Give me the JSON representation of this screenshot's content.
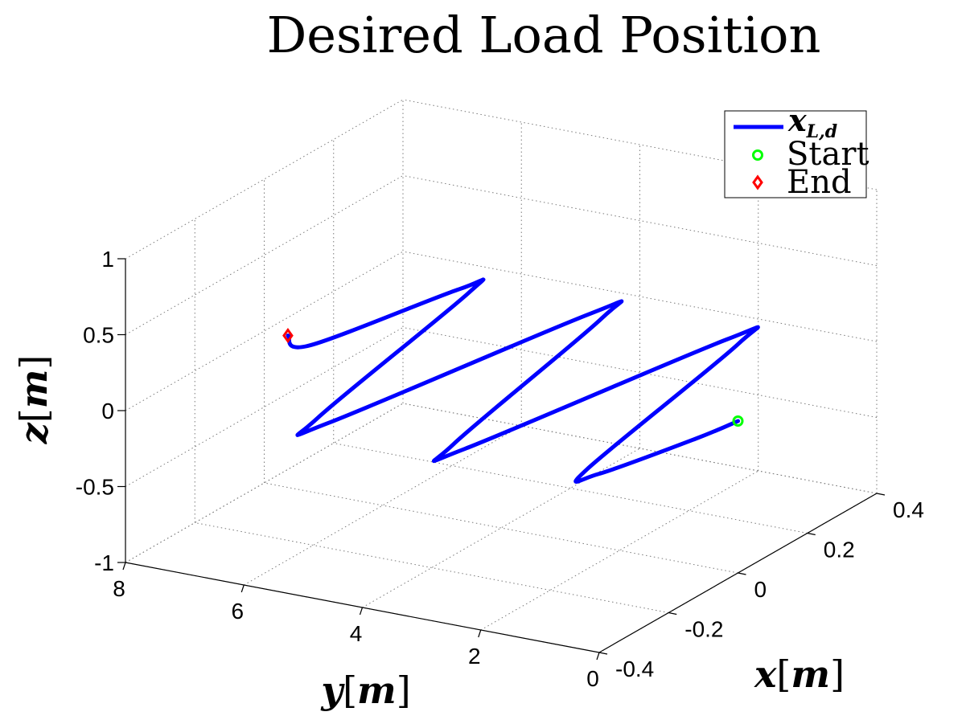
{
  "chart_data": {
    "type": "line",
    "title": "Desired Load Position",
    "axes": {
      "x": {
        "label": "x",
        "unit": "m",
        "lim": [
          -0.4,
          0.4
        ],
        "ticks": [
          -0.4,
          -0.2,
          0,
          0.2,
          0.4
        ],
        "tick_labels": [
          "-0.4",
          "-0.2",
          "0",
          "0.2",
          "0.4"
        ]
      },
      "y": {
        "label": "y",
        "unit": "m",
        "lim": [
          0,
          8
        ],
        "ticks": [
          0,
          2,
          4,
          6,
          8
        ],
        "tick_labels": [
          "0",
          "2",
          "4",
          "6",
          "8"
        ]
      },
      "z": {
        "label": "z",
        "unit": "m",
        "lim": [
          -1,
          1
        ],
        "ticks": [
          -1,
          -0.5,
          0,
          0.5,
          1
        ],
        "tick_labels": [
          "-1",
          "-0.5",
          "0",
          "0.5",
          "1"
        ]
      }
    },
    "grid": true,
    "legend_position": "top-right",
    "series": [
      {
        "name": "x_{L,d}",
        "color": "#0000ff",
        "x": [
          0.0,
          -0.1,
          -0.3,
          -0.29,
          0.29,
          0.3,
          -0.3,
          -0.29,
          0.29,
          0.3,
          -0.3,
          -0.29,
          0.29,
          0.3,
          -0.02,
          0.0
        ],
        "y": [
          0.0,
          0.15,
          0.6,
          0.85,
          1.7,
          1.95,
          2.85,
          3.1,
          4.0,
          4.25,
          5.15,
          5.4,
          6.25,
          6.45,
          7.1,
          7.6
        ],
        "z": [
          0.0,
          0.0,
          0.0,
          0.0,
          0.0,
          0.0,
          0.0,
          0.0,
          0.0,
          0.0,
          0.0,
          0.0,
          0.0,
          0.0,
          0.0,
          0.0
        ]
      },
      {
        "name": "Start",
        "color": "#00ff00",
        "marker": "circle",
        "x": [
          0.0
        ],
        "y": [
          0.0
        ],
        "z": [
          0.0
        ]
      },
      {
        "name": "End",
        "color": "#ff0000",
        "marker": "diamond",
        "x": [
          0.0
        ],
        "y": [
          7.6
        ],
        "z": [
          0.0
        ]
      }
    ],
    "legend": [
      {
        "symbol": "x",
        "subscript": "L,d"
      },
      {
        "label": "Start"
      },
      {
        "label": "End"
      }
    ]
  }
}
